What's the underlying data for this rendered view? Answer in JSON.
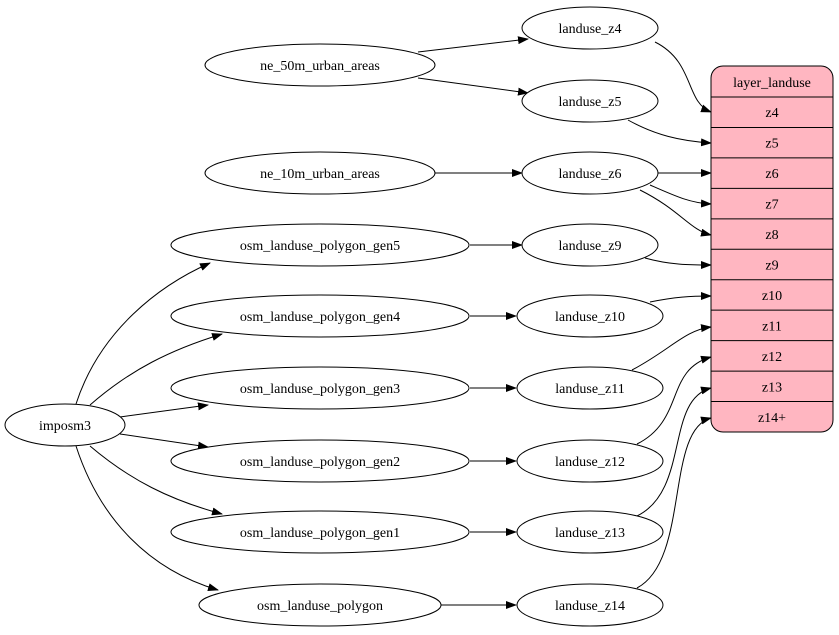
{
  "colors": {
    "record_fill": "#ffb6c1",
    "stroke": "#000000",
    "background": "#ffffff"
  },
  "nodes": [
    {
      "id": "ne50",
      "label": "ne_50m_urban_areas"
    },
    {
      "id": "ne10",
      "label": "ne_10m_urban_areas"
    },
    {
      "id": "gen5",
      "label": "osm_landuse_polygon_gen5"
    },
    {
      "id": "gen4",
      "label": "osm_landuse_polygon_gen4"
    },
    {
      "id": "gen3",
      "label": "osm_landuse_polygon_gen3"
    },
    {
      "id": "gen2",
      "label": "osm_landuse_polygon_gen2"
    },
    {
      "id": "gen1",
      "label": "osm_landuse_polygon_gen1"
    },
    {
      "id": "osm",
      "label": "osm_landuse_polygon"
    },
    {
      "id": "imposm3",
      "label": "imposm3"
    },
    {
      "id": "z4",
      "label": "landuse_z4"
    },
    {
      "id": "z5",
      "label": "landuse_z5"
    },
    {
      "id": "z6",
      "label": "landuse_z6"
    },
    {
      "id": "z9",
      "label": "landuse_z9"
    },
    {
      "id": "z10",
      "label": "landuse_z10"
    },
    {
      "id": "z11",
      "label": "landuse_z11"
    },
    {
      "id": "z12",
      "label": "landuse_z12"
    },
    {
      "id": "z13",
      "label": "landuse_z13"
    },
    {
      "id": "z14",
      "label": "landuse_z14"
    }
  ],
  "record": {
    "title": "layer_landuse",
    "ports": [
      "z4",
      "z5",
      "z6",
      "z7",
      "z8",
      "z9",
      "z10",
      "z11",
      "z12",
      "z13",
      "z14+"
    ]
  },
  "edges": [
    {
      "from": "ne50",
      "to": "z4"
    },
    {
      "from": "ne50",
      "to": "z5"
    },
    {
      "from": "ne10",
      "to": "z6"
    },
    {
      "from": "gen5",
      "to": "z9"
    },
    {
      "from": "gen4",
      "to": "z10"
    },
    {
      "from": "gen3",
      "to": "z11"
    },
    {
      "from": "gen2",
      "to": "z12"
    },
    {
      "from": "gen1",
      "to": "z13"
    },
    {
      "from": "osm",
      "to": "z14"
    },
    {
      "from": "imposm3",
      "to": "gen5"
    },
    {
      "from": "imposm3",
      "to": "gen4"
    },
    {
      "from": "imposm3",
      "to": "gen3"
    },
    {
      "from": "imposm3",
      "to": "gen2"
    },
    {
      "from": "imposm3",
      "to": "gen1"
    },
    {
      "from": "imposm3",
      "to": "osm"
    },
    {
      "from": "z4",
      "to": "layer_landuse:z4"
    },
    {
      "from": "z5",
      "to": "layer_landuse:z5"
    },
    {
      "from": "z6",
      "to": "layer_landuse:z6"
    },
    {
      "from": "z6",
      "to": "layer_landuse:z7"
    },
    {
      "from": "z6",
      "to": "layer_landuse:z8"
    },
    {
      "from": "z9",
      "to": "layer_landuse:z9"
    },
    {
      "from": "z10",
      "to": "layer_landuse:z10"
    },
    {
      "from": "z11",
      "to": "layer_landuse:z11"
    },
    {
      "from": "z12",
      "to": "layer_landuse:z12"
    },
    {
      "from": "z13",
      "to": "layer_landuse:z13"
    },
    {
      "from": "z14",
      "to": "layer_landuse:z14+"
    }
  ]
}
